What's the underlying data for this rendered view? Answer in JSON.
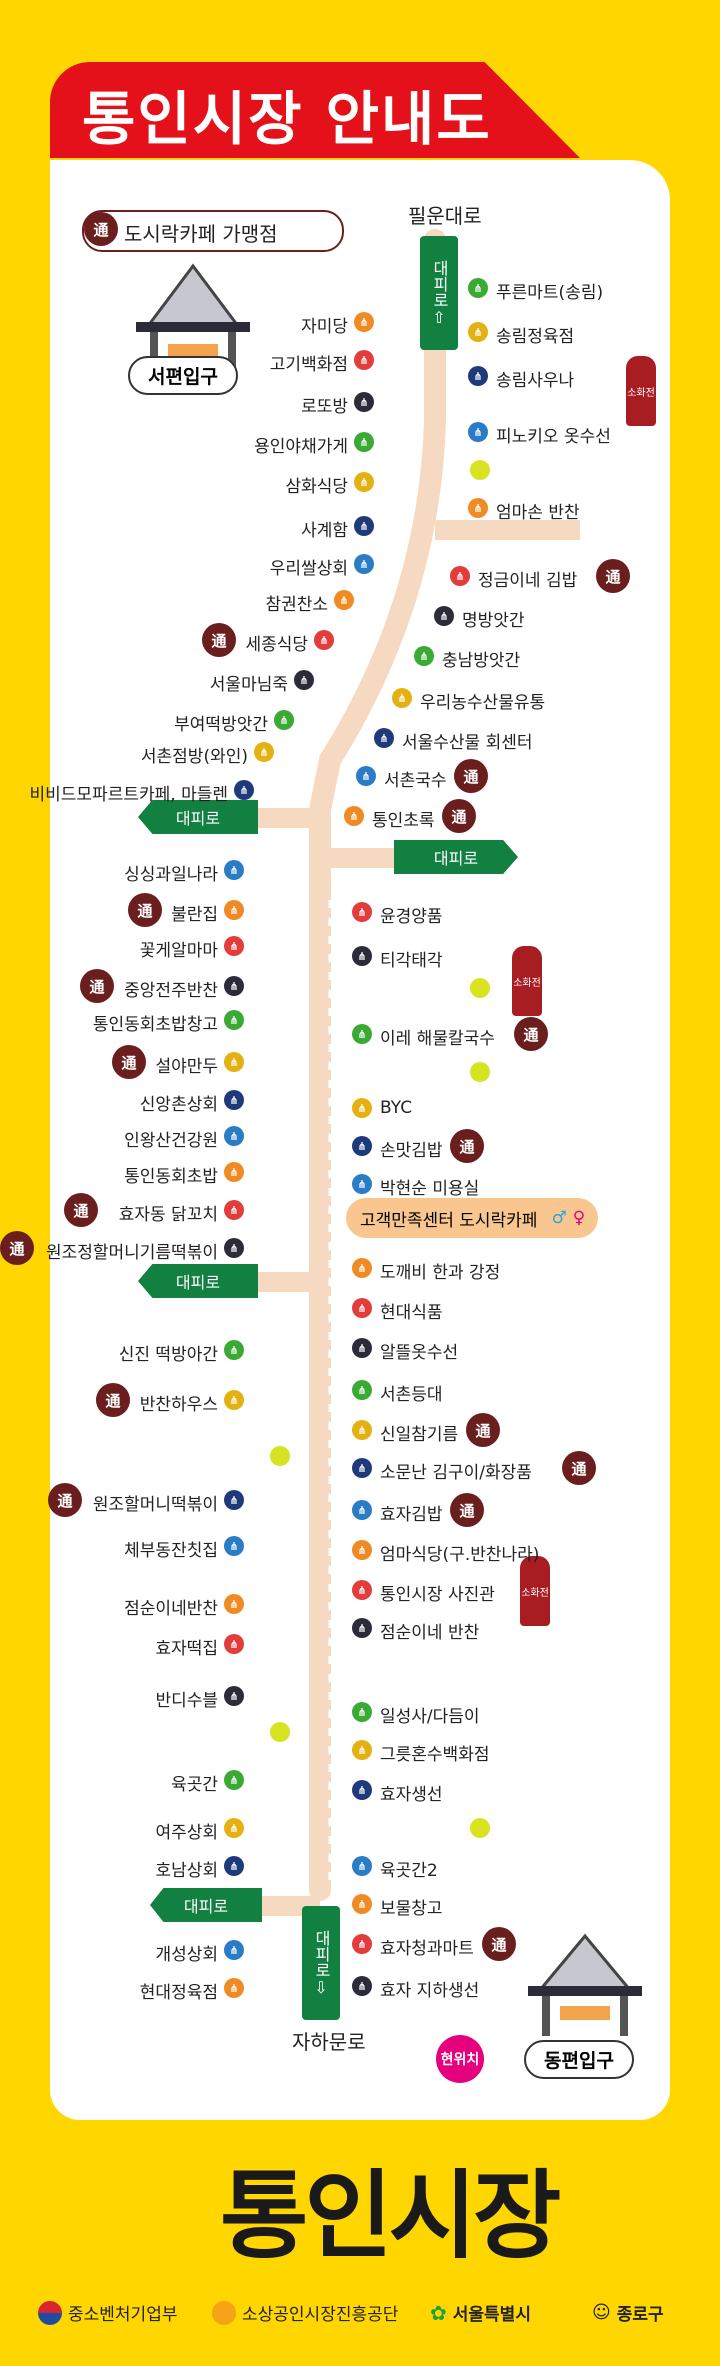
{
  "title": "통인시장 안내도",
  "top_tag": "도시락카페 가맹점",
  "tong": "通",
  "gates": {
    "west": "서편입구",
    "east": "동편입구"
  },
  "road_top": "필운대로",
  "road_bottom": "자하문로",
  "exit_label": "대피로",
  "hydrant_label": "소화전",
  "current_location": "현위치",
  "customer_center": "고객만족센터 도시락카페",
  "brand": "통인시장",
  "footer": [
    "중소벤처기업부",
    "소상공인시장진흥공단",
    "서울특별시",
    "종로구"
  ],
  "left_shops": [
    "자미당",
    "고기백화점",
    "로또방",
    "용인야채가게",
    "삼화식당",
    "사계함",
    "우리쌀상회",
    "참권찬소",
    "세종식당",
    "서울마님죽",
    "부여떡방앗간",
    "서촌점방(와인)",
    "비비드모파르트카페, 마들렌",
    "싱싱과일나라",
    "불란집",
    "꽃게알마마",
    "중앙전주반찬",
    "통인동회초밥창고",
    "설야만두",
    "신앙촌상회",
    "인왕산건강원",
    "통인동회초밥",
    "효자동 닭꼬치",
    "원조정할머니기름떡볶이",
    "신진 떡방아간",
    "반찬하우스",
    "원조할머니떡볶이",
    "체부동잔칫집",
    "점순이네반찬",
    "효자떡집",
    "반디수블",
    "육곳간",
    "여주상회",
    "호남상회",
    "개성상회",
    "현대정육점"
  ],
  "right_shops": [
    "푸른마트(송림)",
    "송림정육점",
    "송림사우나",
    "피노키오 옷수선",
    "엄마손 반찬",
    "정금이네 김밥",
    "명방앗간",
    "충남방앗간",
    "우리농수산물유통",
    "서울수산물 회센터",
    "서촌국수",
    "통인초록",
    "윤경양품",
    "티각태각",
    "이레 해물칼국수",
    "BYC",
    "손맛김밥",
    "박현순 미용실",
    "도깨비 한과 강정",
    "현대식품",
    "알뜰옷수선",
    "서촌등대",
    "신일참기름",
    "소문난 김구이/화장품",
    "효자김밥",
    "엄마식당(구.반찬나라)",
    "통인시장 사진관",
    "점순이네 반찬",
    "일성사/다듬이",
    "그릇혼수백화점",
    "효자생선",
    "육곳간2",
    "보물창고",
    "효자청과마트",
    "효자 지하생선"
  ],
  "colors": {
    "accent": "#E4111B",
    "background": "#FFD600",
    "road": "#F6D9C1",
    "exit": "#118040",
    "tong": "#6B1E1E"
  }
}
